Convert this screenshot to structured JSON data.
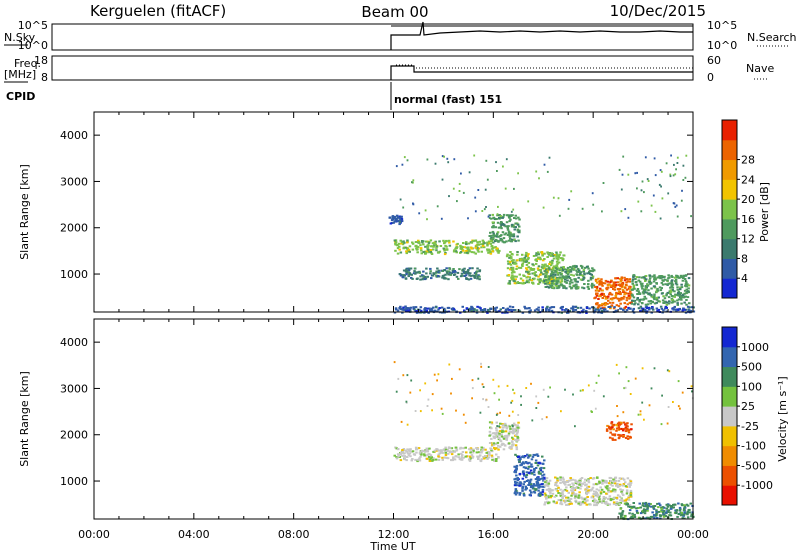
{
  "header": {
    "station": "Kerguelen (fitACF)",
    "beam": "Beam 00",
    "date": "10/Dec/2015"
  },
  "status_panels": {
    "nsky_label": "N.Sky",
    "nsky_ticks": [
      "10^5",
      "10^0"
    ],
    "nsearch_label": "N.Search",
    "nsearch_ticks": [
      "10^5",
      "10^0"
    ],
    "freq_label_1": "Freq.",
    "freq_label_2": "[MHz]",
    "freq_ticks": [
      "18",
      "8"
    ],
    "nave_label": "Nave",
    "nave_ticks": [
      "60",
      "0"
    ],
    "cpid_label": "CPID",
    "cpid_value": "normal (fast) 151"
  },
  "chart_data": [
    {
      "type": "heatmap",
      "panel": "power",
      "ylabel": "Slant Range [km]",
      "xlabel": "",
      "x_range_hours": [
        0,
        24
      ],
      "ylim": [
        180,
        4500
      ],
      "yticks": [
        "1000",
        "2000",
        "3000",
        "4000"
      ],
      "colorbar_label": "Power [dB]",
      "colorbar_ticks": [
        "4",
        "8",
        "12",
        "16",
        "20",
        "24",
        "28"
      ],
      "colorbar_colors": [
        "#1428d2",
        "#2f5aa6",
        "#3b7a6e",
        "#4f9a5e",
        "#7cc34a",
        "#f2c400",
        "#f09a00",
        "#ec6400",
        "#e82000"
      ],
      "features": [
        {
          "hours": [
            11.8,
            12.3
          ],
          "range_km": [
            2100,
            2300
          ],
          "level": 4
        },
        {
          "hours": [
            12.0,
            16.2
          ],
          "range_km": [
            1450,
            1750
          ],
          "level": 16
        },
        {
          "hours": [
            12.2,
            15.5
          ],
          "range_km": [
            900,
            1150
          ],
          "level": 8
        },
        {
          "hours": [
            15.8,
            17.0
          ],
          "range_km": [
            1700,
            2300
          ],
          "level": 12
        },
        {
          "hours": [
            16.5,
            18.8
          ],
          "range_km": [
            800,
            1500
          ],
          "level": 16
        },
        {
          "hours": [
            18.0,
            20.0
          ],
          "range_km": [
            700,
            1200
          ],
          "level": 12
        },
        {
          "hours": [
            20.0,
            21.5
          ],
          "range_km": [
            280,
            950
          ],
          "level": 28
        },
        {
          "hours": [
            21.5,
            23.8
          ],
          "range_km": [
            350,
            1000
          ],
          "level": 12
        },
        {
          "hours": [
            12.0,
            24.0
          ],
          "range_km": [
            180,
            320
          ],
          "level": 4
        }
      ]
    },
    {
      "type": "heatmap",
      "panel": "velocity",
      "ylabel": "Slant Range [km]",
      "xlabel": "Time UT",
      "x_range_hours": [
        0,
        24
      ],
      "xticks": [
        "00:00",
        "04:00",
        "08:00",
        "12:00",
        "16:00",
        "20:00",
        "00:00"
      ],
      "ylim": [
        180,
        4500
      ],
      "yticks": [
        "1000",
        "2000",
        "3000",
        "4000"
      ],
      "colorbar_label": "Velocity [m s⁻¹]",
      "colorbar_ticks": [
        "1000",
        "500",
        "100",
        "25",
        "-25",
        "-100",
        "-500",
        "-1000"
      ],
      "colorbar_colors": [
        "#1428d2",
        "#3366b0",
        "#3f8a5c",
        "#74c23e",
        "#c8c8c8",
        "#f0c000",
        "#f08c00",
        "#ec5000",
        "#e81000"
      ],
      "features": [
        {
          "hours": [
            12.0,
            16.2
          ],
          "range_km": [
            1450,
            1750
          ],
          "velocity": 0
        },
        {
          "hours": [
            15.8,
            17.0
          ],
          "range_km": [
            1700,
            2300
          ],
          "velocity": 0
        },
        {
          "hours": [
            16.8,
            18.0
          ],
          "range_km": [
            700,
            1600
          ],
          "velocity": 400
        },
        {
          "hours": [
            18.0,
            21.5
          ],
          "range_km": [
            500,
            1100
          ],
          "velocity": 0
        },
        {
          "hours": [
            21.0,
            24.0
          ],
          "range_km": [
            200,
            550
          ],
          "velocity": 100
        },
        {
          "hours": [
            20.5,
            21.5
          ],
          "range_km": [
            1900,
            2300
          ],
          "velocity": -400
        }
      ]
    }
  ]
}
